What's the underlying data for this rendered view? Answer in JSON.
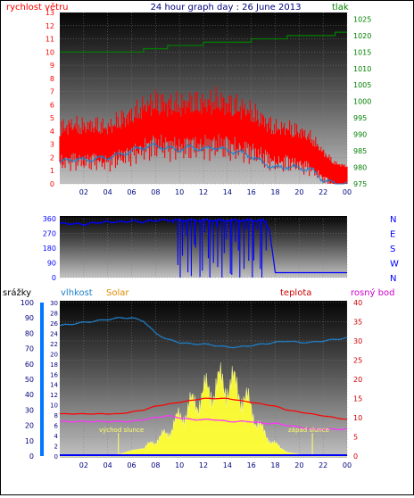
{
  "header": {
    "title": "24 hour graph day : 26 June 2013",
    "left_label": "rychlost větru",
    "right_label": "tlak"
  },
  "colors": {
    "wind": "#ff0000",
    "gust_line": "#1e7fc8",
    "pressure": "#008000",
    "direction": "#0000ff",
    "humidity": "#1e7fc8",
    "solar": "#ffff33",
    "temperature": "#ff0000",
    "dewpoint": "#ff33ff",
    "rain": "#0000ff",
    "blue_axis": "#0077ff"
  },
  "x_ticks": [
    "02",
    "04",
    "06",
    "08",
    "10",
    "12",
    "14",
    "16",
    "18",
    "20",
    "22",
    "00"
  ],
  "panel3_labels": {
    "rain": "srážky",
    "humidity": "vlhkost",
    "solar": "Solar",
    "temperature": "teplota",
    "dewpoint": "rosný bod",
    "sunrise": "východ slunce",
    "sunset": "západ slunce"
  },
  "chart_data": [
    {
      "type": "line",
      "ylabel": "rychlost větru",
      "y2label": "tlak",
      "ylim": [
        0,
        13
      ],
      "y_ticks": [
        "0",
        "1",
        "2",
        "3",
        "4",
        "5",
        "6",
        "7",
        "8",
        "9",
        "10",
        "11",
        "12",
        "13"
      ],
      "y2lim": [
        975,
        1027
      ],
      "y2_ticks": [
        "975",
        "980",
        "985",
        "990",
        "995",
        "1000",
        "1005",
        "1010",
        "1015",
        "1020",
        "1025"
      ],
      "x_hours": [
        0,
        1,
        2,
        3,
        4,
        5,
        6,
        7,
        8,
        9,
        10,
        11,
        12,
        13,
        14,
        15,
        16,
        17,
        18,
        19,
        20,
        21,
        22,
        23,
        24
      ],
      "series": [
        {
          "name": "rychlost větru",
          "values": [
            3.0,
            3.2,
            3.1,
            3.2,
            3.0,
            3.5,
            3.8,
            4.3,
            4.6,
            4.5,
            4.4,
            4.6,
            4.5,
            4.7,
            4.5,
            4.3,
            4.0,
            3.5,
            3.0,
            3.0,
            2.8,
            2.4,
            1.5,
            0.8,
            0.6
          ]
        },
        {
          "values": [
            1.6,
            1.9,
            1.8,
            1.9,
            2.0,
            2.2,
            2.5,
            2.8,
            2.9,
            2.7,
            2.6,
            2.8,
            2.6,
            2.8,
            2.5,
            2.4,
            2.1,
            1.6,
            1.2,
            1.3,
            1.2,
            1.1,
            0.3,
            0,
            0
          ]
        },
        {
          "name": "tlak",
          "values": [
            1015,
            1015,
            1015,
            1015,
            1015,
            1015,
            1015,
            1016,
            1016,
            1017,
            1017,
            1017,
            1018,
            1018,
            1018,
            1018,
            1019,
            1019,
            1019,
            1020,
            1020,
            1020,
            1020,
            1021,
            1021
          ]
        }
      ]
    },
    {
      "type": "scatter",
      "ylim": [
        0,
        360
      ],
      "y_ticks": [
        "0",
        "90",
        "180",
        "270",
        "360"
      ],
      "y2_ticks": [
        "N",
        "W",
        "S",
        "E",
        "N"
      ],
      "x_hours": [
        0,
        1,
        2,
        3,
        4,
        5,
        6,
        7,
        8,
        9,
        10,
        11,
        12,
        13,
        14,
        15,
        16,
        17,
        17.5,
        18,
        19,
        20,
        21,
        22,
        23,
        24
      ],
      "series": [
        {
          "values": [
            330,
            330,
            325,
            335,
            340,
            340,
            345,
            340,
            350,
            350,
            350,
            350,
            350,
            350,
            350,
            350,
            350,
            350,
            300,
            30,
            30,
            30,
            30,
            30,
            30,
            30
          ]
        }
      ]
    },
    {
      "type": "area",
      "ylabel": "srážky",
      "y_left_ticks": [
        "0",
        "10",
        "20",
        "30",
        "40",
        "50",
        "60",
        "70",
        "80",
        "90",
        "100"
      ],
      "rain_ticks": [
        "0",
        "2",
        "4",
        "6",
        "8",
        "10",
        "12",
        "14",
        "16",
        "18",
        "20",
        "22",
        "24",
        "26",
        "28",
        "30"
      ],
      "y2lim": [
        0,
        40
      ],
      "y2_ticks": [
        "0",
        "5",
        "10",
        "15",
        "20",
        "25",
        "30",
        "35",
        "40"
      ],
      "x_hours": [
        0,
        1,
        2,
        3,
        4,
        5,
        6,
        7,
        8,
        9,
        10,
        11,
        12,
        13,
        14,
        15,
        16,
        17,
        18,
        19,
        20,
        21,
        22,
        23,
        24
      ],
      "series": [
        {
          "name": "vlhkost",
          "values": [
            85,
            86,
            87,
            88,
            89,
            90,
            90,
            88,
            80,
            76,
            74,
            73,
            73,
            72,
            71,
            71,
            72,
            73,
            74,
            75,
            74,
            74,
            75,
            76,
            77
          ]
        },
        {
          "name": "Solar",
          "values": [
            0,
            0,
            0,
            0,
            0,
            0.5,
            1.5,
            2,
            4,
            6,
            10,
            13,
            16,
            18,
            19,
            17,
            12,
            6,
            3,
            1,
            0.5,
            0,
            0,
            0,
            0
          ]
        },
        {
          "name": "teplota",
          "values": [
            11,
            11,
            11,
            11,
            11,
            11,
            11.5,
            12,
            13,
            13.5,
            14,
            14.5,
            15,
            15,
            15,
            14.5,
            14,
            13.5,
            13,
            12,
            11.5,
            11,
            10.5,
            10,
            9.5
          ]
        },
        {
          "name": "rosný bod",
          "values": [
            9,
            9,
            9,
            9,
            9,
            9,
            9,
            9.5,
            10,
            10.5,
            10,
            9.5,
            9.5,
            9.5,
            9,
            9,
            9,
            8.5,
            8.5,
            8,
            7.5,
            7,
            7,
            7,
            7
          ]
        },
        {
          "name": "srážky",
          "values": [
            0,
            0,
            0,
            0,
            0,
            0,
            0,
            0,
            0,
            0,
            0,
            0,
            0,
            0,
            0,
            0,
            0,
            0,
            0,
            0,
            0,
            0,
            0,
            0,
            0
          ]
        }
      ]
    }
  ]
}
